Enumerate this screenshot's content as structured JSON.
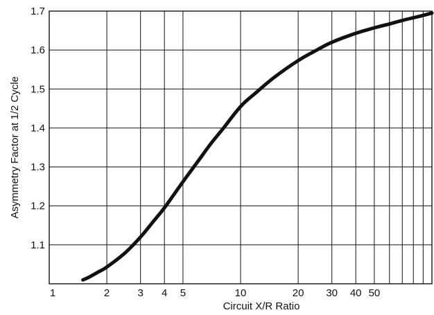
{
  "chart_data": {
    "type": "line",
    "xlabel": "Circuit X/R Ratio",
    "ylabel": "Asymmetry Factor at 1/2 Cycle",
    "x_scale": "log",
    "xlim": [
      1,
      100
    ],
    "ylim": [
      1.0,
      1.7
    ],
    "x_ticks": [
      {
        "value": 1,
        "label": "1"
      },
      {
        "value": 2,
        "label": "2"
      },
      {
        "value": 3,
        "label": "3"
      },
      {
        "value": 4,
        "label": "4"
      },
      {
        "value": 5,
        "label": "5"
      },
      {
        "value": 10,
        "label": "10"
      },
      {
        "value": 20,
        "label": "20"
      },
      {
        "value": 30,
        "label": "30"
      },
      {
        "value": 40,
        "label": "40"
      },
      {
        "value": 50,
        "label": "50"
      }
    ],
    "x_gridlines": [
      2,
      3,
      4,
      5,
      10,
      20,
      30,
      40,
      50,
      60,
      70,
      80,
      90
    ],
    "y_ticks": [
      {
        "value": 1.1,
        "label": "1.1"
      },
      {
        "value": 1.2,
        "label": "1.2"
      },
      {
        "value": 1.3,
        "label": "1.3"
      },
      {
        "value": 1.4,
        "label": "1.4"
      },
      {
        "value": 1.5,
        "label": "1.5"
      },
      {
        "value": 1.6,
        "label": "1.6"
      },
      {
        "value": 1.7,
        "label": "1.7"
      }
    ],
    "grid": true,
    "series": [
      {
        "color": "#111111",
        "x": [
          1.5,
          1.6,
          1.8,
          2,
          2.5,
          3,
          3.5,
          4,
          5,
          6,
          7,
          8,
          10,
          12,
          15,
          20,
          25,
          30,
          40,
          50,
          60,
          70,
          80,
          90,
          100
        ],
        "y": [
          1.01,
          1.016,
          1.03,
          1.043,
          1.08,
          1.12,
          1.16,
          1.195,
          1.262,
          1.315,
          1.36,
          1.395,
          1.455,
          1.49,
          1.53,
          1.573,
          1.6,
          1.62,
          1.643,
          1.657,
          1.667,
          1.676,
          1.683,
          1.689,
          1.695
        ]
      }
    ]
  }
}
